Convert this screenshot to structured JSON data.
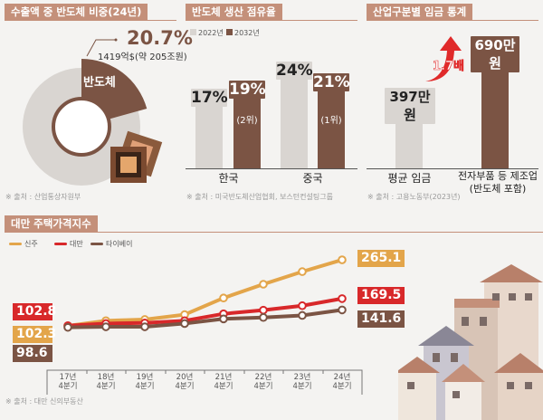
{
  "colors": {
    "header": "#c4907a",
    "brown": "#7b5444",
    "gray": "#d9d5d1",
    "red": "#d8282a",
    "orange": "#e3a54a",
    "arrow": "#e02a2a"
  },
  "panel1": {
    "title": "수출액 중 반도체 비중(24년)",
    "value": "20.7%",
    "sub": "1419억$(약 205조원)",
    "segment_label": "반도체",
    "share": 20.7,
    "source": "※ 출처 : 산업통상자원부"
  },
  "panel2": {
    "title": "반도체 생산 점유율",
    "legend": [
      "2022년",
      "2032년"
    ],
    "groups": [
      {
        "name": "한국",
        "v2022": 17,
        "l2022": "17%",
        "v2032": 19,
        "l2032": "19%",
        "rank": "(2위)"
      },
      {
        "name": "중국",
        "v2022": 24,
        "l2022": "24%",
        "v2032": 21,
        "l2032": "21%",
        "rank": "(1위)"
      }
    ],
    "source": "※ 출처 : 미국반도체산업협회, 보스턴컨설팅그룹"
  },
  "panel3": {
    "title": "산업구분별 임금 통계",
    "ratio": "1.7배",
    "bars": [
      {
        "name": "평균 임금",
        "value": 397,
        "label": "397만원"
      },
      {
        "name": "전자부품 등 제조업",
        "name2": "(반도체 포함)",
        "value": 690,
        "label": "690만원"
      }
    ],
    "source": "※ 출처 : 고용노동부(2023년)"
  },
  "chart_data": {
    "type": "line",
    "title": "대만 주택가격지수",
    "categories": [
      "17년 4분기",
      "18년 4분기",
      "19년 4분기",
      "20년 4분기",
      "21년 4분기",
      "22년 4분기",
      "23년 4분기",
      "24년 4분기"
    ],
    "cat_lines": [
      [
        "17년",
        "4분기"
      ],
      [
        "18년",
        "4분기"
      ],
      [
        "19년",
        "4분기"
      ],
      [
        "20년",
        "4분기"
      ],
      [
        "21년",
        "4분기"
      ],
      [
        "22년",
        "4분기"
      ],
      [
        "23년",
        "4분기"
      ],
      [
        "24년",
        "4분기"
      ]
    ],
    "series": [
      {
        "name": "신주",
        "color": "#e3a54a",
        "values": [
          102.3,
          115,
          118,
          130,
          171,
          205,
          236,
          265.1
        ],
        "start_label": "102.3",
        "end_label": "265.1"
      },
      {
        "name": "대만",
        "color": "#d8282a",
        "values": [
          102.8,
          108,
          109.5,
          115,
          132,
          141,
          152,
          169.5
        ],
        "start_label": "102.8",
        "end_label": "169.5"
      },
      {
        "name": "타이베이",
        "color": "#7b5444",
        "values": [
          98.6,
          100,
          100,
          108,
          119.5,
          123,
          128,
          141.6
        ],
        "start_label": "98.6",
        "end_label": "141.6"
      }
    ],
    "ylim": [
      90,
      280
    ],
    "source": "※ 출처 : 대만 신의부동산"
  }
}
